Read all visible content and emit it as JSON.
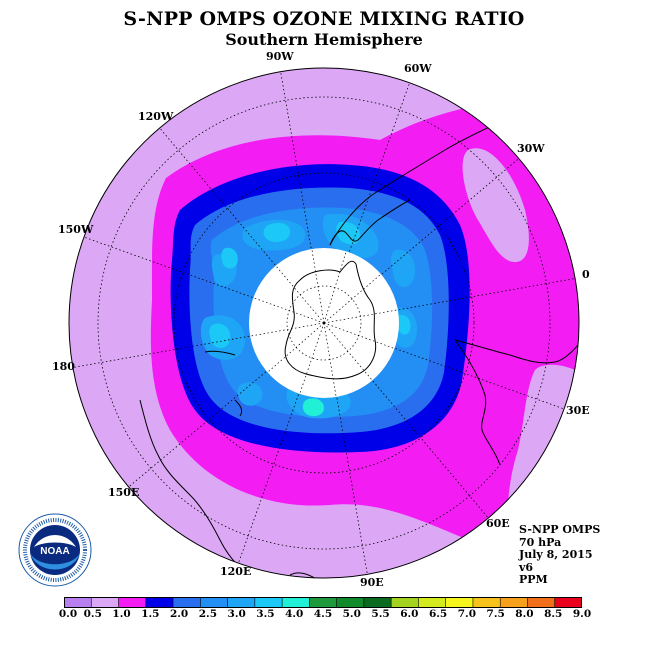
{
  "title": "S-NPP OMPS OZONE MIXING RATIO",
  "subtitle": "Southern Hemisphere",
  "longitude_labels": [
    {
      "id": "90w",
      "text": "90W"
    },
    {
      "id": "60w",
      "text": "60W"
    },
    {
      "id": "30w",
      "text": "30W"
    },
    {
      "id": "0",
      "text": "0"
    },
    {
      "id": "30e",
      "text": "30E"
    },
    {
      "id": "60e",
      "text": "60E"
    },
    {
      "id": "90e",
      "text": "90E"
    },
    {
      "id": "120e",
      "text": "120E"
    },
    {
      "id": "150e",
      "text": "150E"
    },
    {
      "id": "180",
      "text": "180"
    },
    {
      "id": "150w",
      "text": "150W"
    },
    {
      "id": "120w",
      "text": "120W"
    }
  ],
  "info": {
    "instrument": "S-NPP OMPS",
    "level": "70 hPa",
    "date": "July 8, 2015",
    "version": "v6",
    "units": "PPM"
  },
  "colorbar": {
    "ticks": [
      "0.0",
      "0.5",
      "1.0",
      "1.5",
      "2.0",
      "2.5",
      "3.0",
      "3.5",
      "4.0",
      "4.5",
      "5.0",
      "5.5",
      "6.0",
      "6.5",
      "7.0",
      "7.5",
      "8.0",
      "8.5",
      "9.0"
    ],
    "colors": [
      "#b77ff0",
      "#dca8f6",
      "#f31df4",
      "#0000e8",
      "#2a6ef0",
      "#238ef3",
      "#1fa5f6",
      "#1bc8f6",
      "#21efd6",
      "#1e9a3c",
      "#118a2a",
      "#0a6a1f",
      "#a3d31e",
      "#d3ea1c",
      "#f6f61d",
      "#f6c31c",
      "#f6a01b",
      "#f16f1b",
      "#e8001c",
      "#7b5440"
    ]
  },
  "legend_levels_on_map": {
    "outer_fill": "#dca8f6",
    "ring_1": "#f31df4",
    "ring_2": "#0000e8",
    "ring_3": "#2a6ef0",
    "ring_4": "#238ef3",
    "ring_5": "#1fa5f6",
    "ring_6": "#1bc8f6",
    "max_patch": "#21efd6",
    "no_data": "#ffffff"
  },
  "logo": {
    "name": "NOAA",
    "ring_text": "NATIONAL OCEANIC AND ATMOSPHERIC ADMINISTRATION",
    "bottom_text": "U.S. DEPARTMENT OF COMMERCE"
  }
}
